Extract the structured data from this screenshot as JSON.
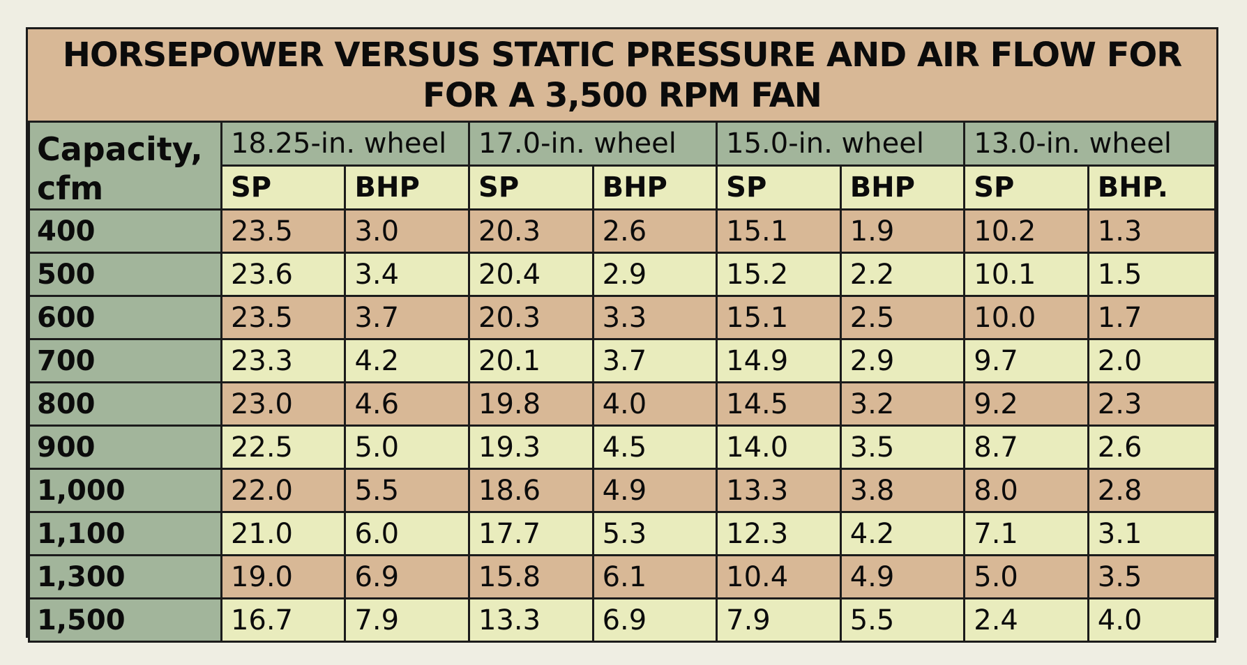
{
  "chart_data": {
    "type": "table",
    "title": [
      "HORSEPOWER VERSUS STATIC PRESSURE AND AIR FLOW FOR",
      "FOR A 3,500 RPM FAN"
    ],
    "capacity_header": [
      "Capacity,",
      "cfm"
    ],
    "wheels": [
      "18.25-in. wheel",
      "17.0-in. wheel",
      "15.0-in. wheel",
      "13.0-in. wheel"
    ],
    "sub_headers": [
      "SP",
      "BHP",
      "SP",
      "BHP",
      "SP",
      "BHP",
      "SP",
      "BHP."
    ],
    "rows": [
      {
        "capacity": "400",
        "values": [
          "23.5",
          "3.0",
          "20.3",
          "2.6",
          "15.1",
          "1.9",
          "10.2",
          "1.3"
        ]
      },
      {
        "capacity": "500",
        "values": [
          "23.6",
          "3.4",
          "20.4",
          "2.9",
          "15.2",
          "2.2",
          "10.1",
          "1.5"
        ]
      },
      {
        "capacity": "600",
        "values": [
          "23.5",
          "3.7",
          "20.3",
          "3.3",
          "15.1",
          "2.5",
          "10.0",
          "1.7"
        ]
      },
      {
        "capacity": "700",
        "values": [
          "23.3",
          "4.2",
          "20.1",
          "3.7",
          "14.9",
          "2.9",
          "9.7",
          "2.0"
        ]
      },
      {
        "capacity": "800",
        "values": [
          "23.0",
          "4.6",
          "19.8",
          "4.0",
          "14.5",
          "3.2",
          "9.2",
          "2.3"
        ]
      },
      {
        "capacity": "900",
        "values": [
          "22.5",
          "5.0",
          "19.3",
          "4.5",
          "14.0",
          "3.5",
          "8.7",
          "2.6"
        ]
      },
      {
        "capacity": "1,000",
        "values": [
          "22.0",
          "5.5",
          "18.6",
          "4.9",
          "13.3",
          "3.8",
          "8.0",
          "2.8"
        ]
      },
      {
        "capacity": "1,100",
        "values": [
          "21.0",
          "6.0",
          "17.7",
          "5.3",
          "12.3",
          "4.2",
          "7.1",
          "3.1"
        ]
      },
      {
        "capacity": "1,300",
        "values": [
          "19.0",
          "6.9",
          "15.8",
          "6.1",
          "10.4",
          "4.9",
          "5.0",
          "3.5"
        ]
      },
      {
        "capacity": "1,500",
        "values": [
          "16.7",
          "7.9",
          "13.3",
          "6.9",
          "7.9",
          "5.5",
          "2.4",
          "4.0"
        ]
      }
    ]
  },
  "colors": {
    "title_bg": "#d8b896",
    "header_bg": "#a2b59b",
    "light_row": "#e9ecbd",
    "tan_row": "#d8b896",
    "border": "#1b1b1b"
  }
}
